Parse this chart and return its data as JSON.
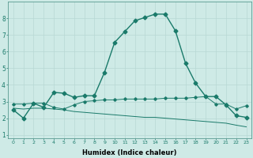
{
  "xlabel": "Humidex (Indice chaleur)",
  "ylabel": "",
  "background_color": "#ceeae6",
  "grid_color": "#b8d8d4",
  "line_color": "#1a7a6a",
  "xlim": [
    -0.5,
    23.5
  ],
  "ylim": [
    0.8,
    9.0
  ],
  "xticks": [
    0,
    1,
    2,
    3,
    4,
    5,
    6,
    7,
    8,
    9,
    10,
    11,
    12,
    13,
    14,
    15,
    16,
    17,
    18,
    19,
    20,
    21,
    22,
    23
  ],
  "yticks": [
    1,
    2,
    3,
    4,
    5,
    6,
    7,
    8
  ],
  "curve1_x": [
    0,
    1,
    2,
    3,
    4,
    5,
    6,
    7,
    8,
    9,
    10,
    11,
    12,
    13,
    14,
    15,
    16,
    17,
    18,
    19,
    20,
    21,
    22,
    23
  ],
  "curve1_y": [
    2.5,
    2.0,
    2.9,
    2.65,
    3.55,
    3.5,
    3.25,
    3.35,
    3.35,
    4.75,
    6.55,
    7.2,
    7.85,
    8.05,
    8.25,
    8.25,
    7.25,
    5.3,
    4.1,
    3.3,
    3.3,
    2.8,
    2.15,
    2.05
  ],
  "curve2_x": [
    0,
    1,
    2,
    3,
    4,
    5,
    6,
    7,
    8,
    9,
    10,
    11,
    12,
    13,
    14,
    15,
    16,
    17,
    18,
    19,
    20,
    21,
    22,
    23
  ],
  "curve2_y": [
    2.85,
    2.85,
    2.9,
    2.9,
    2.65,
    2.55,
    2.8,
    3.0,
    3.05,
    3.1,
    3.1,
    3.15,
    3.15,
    3.15,
    3.15,
    3.2,
    3.2,
    3.2,
    3.25,
    3.3,
    2.85,
    2.85,
    2.55,
    2.75
  ],
  "curve3_x": [
    0,
    1,
    2,
    3,
    4,
    5,
    6,
    7,
    8,
    9,
    10,
    11,
    12,
    13,
    14,
    15,
    16,
    17,
    18,
    19,
    20,
    21,
    22,
    23
  ],
  "curve3_y": [
    2.6,
    2.55,
    2.6,
    2.6,
    2.55,
    2.5,
    2.4,
    2.35,
    2.3,
    2.25,
    2.2,
    2.15,
    2.1,
    2.05,
    2.05,
    2.0,
    1.95,
    1.9,
    1.85,
    1.8,
    1.75,
    1.7,
    1.58,
    1.48
  ]
}
